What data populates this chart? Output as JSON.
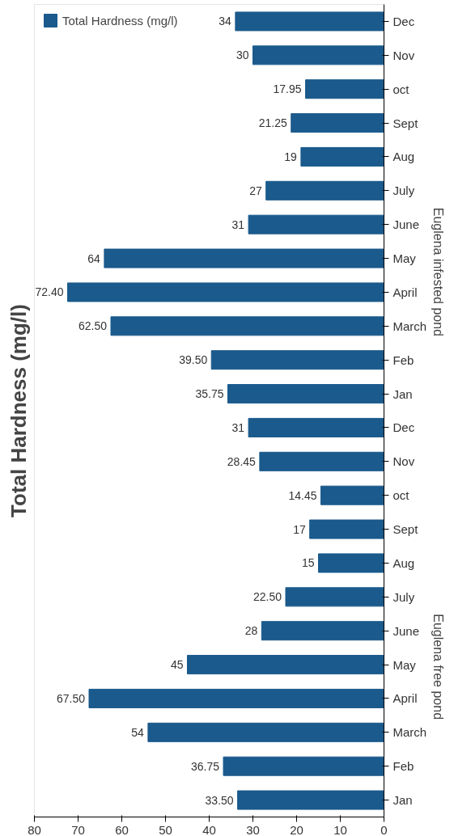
{
  "chart_data": {
    "type": "bar",
    "orientation": "horizontal",
    "title": "Total Hardness (mg/l)",
    "categories": [
      "Dec",
      "Nov",
      "oct",
      "Sept",
      "Aug",
      "July",
      "June",
      "May",
      "April",
      "March",
      "Feb",
      "Jan",
      "Dec",
      "Nov",
      "oct",
      "Sept",
      "Aug",
      "July",
      "June",
      "May",
      "April",
      "March",
      "Feb",
      "Jan"
    ],
    "series": [
      {
        "name": "Total Hardness (mg/l)",
        "color": "#1b5a8c",
        "values": [
          34,
          30,
          17.95,
          21.25,
          19,
          27,
          31,
          64,
          72.4,
          62.5,
          39.5,
          35.75,
          31,
          28.45,
          14.45,
          17,
          15,
          22.5,
          28,
          45,
          67.5,
          54,
          36.75,
          33.5
        ],
        "value_labels": [
          "34",
          "30",
          "17.95",
          "21.25",
          "19",
          "27",
          "31",
          "64",
          "72.40",
          "62.50",
          "39.50",
          "35.75",
          "31",
          "28.45",
          "14.45",
          "17",
          "15",
          "22.50",
          "28",
          "45",
          "67.50",
          "54",
          "36.75",
          "33.50"
        ]
      }
    ],
    "annotations": [
      "Euglena infested pond",
      "Euglena free pond"
    ],
    "xlim": [
      80,
      0
    ],
    "xticks": [
      0,
      10,
      20,
      30,
      40,
      50,
      60,
      70,
      80
    ],
    "legend": "top left",
    "grid": false
  }
}
